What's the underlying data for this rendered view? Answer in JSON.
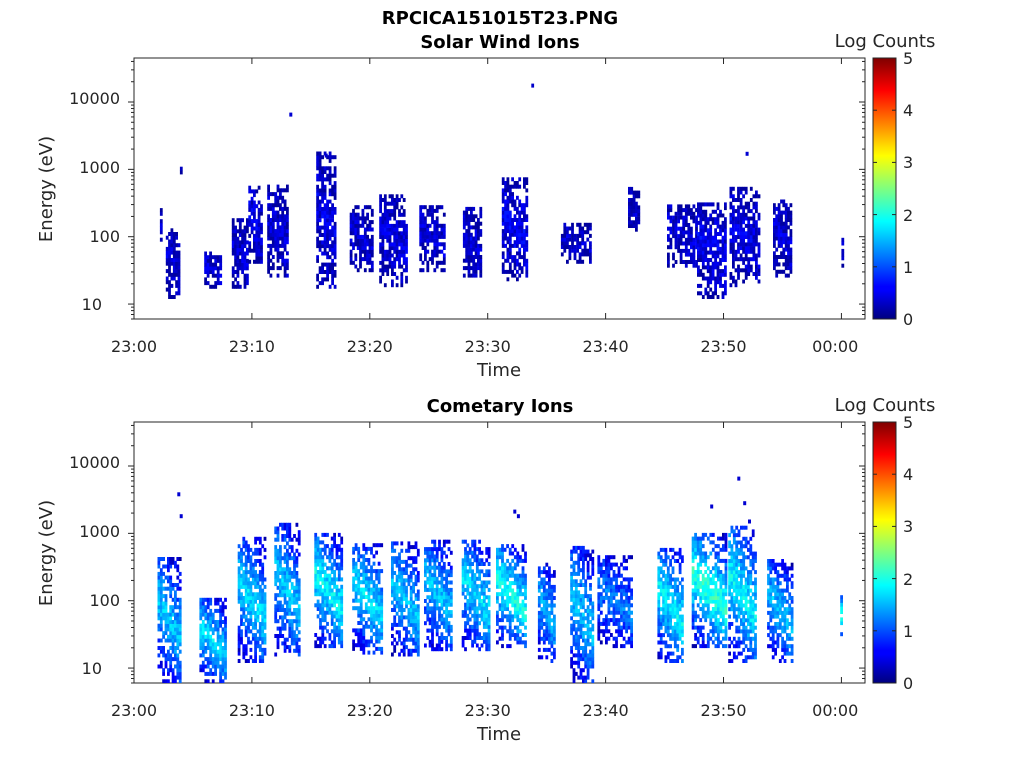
{
  "figure": {
    "title": "RPCICA151015T23.PNG"
  },
  "chart_data": [
    {
      "type": "heatmap",
      "title": "Solar Wind Ions",
      "xlabel": "Time",
      "ylabel": "Energy (eV)",
      "x_tick_labels": [
        "23:00",
        "23:10",
        "23:20",
        "23:30",
        "23:40",
        "23:50",
        "00:00"
      ],
      "x_range_minutes": [
        0,
        62
      ],
      "y_tick_labels": [
        "10",
        "100",
        "1000",
        "10000"
      ],
      "y_range_eV": [
        6,
        45000
      ],
      "y_scale": "log",
      "colorbar": {
        "label": "Log Counts",
        "range": [
          0,
          5
        ],
        "ticks": [
          "0",
          "1",
          "2",
          "3",
          "4",
          "5"
        ],
        "colormap": "jet"
      },
      "bursts": [
        {
          "t": 2.3,
          "width": 0.3,
          "e_low": 75,
          "e_high": 300,
          "count": 0.3
        },
        {
          "t": 3.3,
          "width": 1.2,
          "e_low": 12,
          "e_high": 120,
          "count": 0.35
        },
        {
          "t": 4.0,
          "width": 0.3,
          "e_low": 850,
          "e_high": 1100,
          "count": 0.3
        },
        {
          "t": 6.7,
          "width": 1.5,
          "e_low": 17,
          "e_high": 60,
          "count": 0.35
        },
        {
          "t": 9.0,
          "width": 1.4,
          "e_low": 17,
          "e_high": 180,
          "count": 0.35
        },
        {
          "t": 10.3,
          "width": 1.2,
          "e_low": 40,
          "e_high": 550,
          "count": 0.4
        },
        {
          "t": 12.2,
          "width": 1.8,
          "e_low": 25,
          "e_high": 550,
          "count": 0.35
        },
        {
          "t": 16.3,
          "width": 1.7,
          "e_low": 17,
          "e_high": 1700,
          "count": 0.4
        },
        {
          "t": 19.3,
          "width": 2.0,
          "e_low": 30,
          "e_high": 280,
          "count": 0.35
        },
        {
          "t": 22.0,
          "width": 2.4,
          "e_low": 18,
          "e_high": 420,
          "count": 0.35
        },
        {
          "t": 25.3,
          "width": 2.2,
          "e_low": 30,
          "e_high": 280,
          "count": 0.35
        },
        {
          "t": 28.7,
          "width": 1.6,
          "e_low": 25,
          "e_high": 270,
          "count": 0.35
        },
        {
          "t": 32.3,
          "width": 2.2,
          "e_low": 22,
          "e_high": 700,
          "count": 0.45
        },
        {
          "t": 33.8,
          "width": 0.25,
          "e_low": 16500,
          "e_high": 18000,
          "count": 0.3
        },
        {
          "t": 37.5,
          "width": 2.6,
          "e_low": 40,
          "e_high": 160,
          "count": 0.3
        },
        {
          "t": 42.4,
          "width": 1.0,
          "e_low": 120,
          "e_high": 500,
          "count": 0.3
        },
        {
          "t": 46.5,
          "width": 2.6,
          "e_low": 35,
          "e_high": 300,
          "count": 0.35
        },
        {
          "t": 49.0,
          "width": 2.5,
          "e_low": 12,
          "e_high": 320,
          "count": 0.45
        },
        {
          "t": 51.8,
          "width": 2.6,
          "e_low": 18,
          "e_high": 520,
          "count": 0.4
        },
        {
          "t": 55.0,
          "width": 1.6,
          "e_low": 25,
          "e_high": 350,
          "count": 0.35
        },
        {
          "t": 60.1,
          "width": 0.3,
          "e_low": 35,
          "e_high": 95,
          "count": 0.3
        }
      ],
      "points": [
        {
          "t": 13.3,
          "e": 6500
        },
        {
          "t": 16.3,
          "e": 1600
        },
        {
          "t": 52.0,
          "e": 1700
        }
      ]
    },
    {
      "type": "heatmap",
      "title": "Cometary Ions",
      "xlabel": "Time",
      "ylabel": "Energy (eV)",
      "x_tick_labels": [
        "23:00",
        "23:10",
        "23:20",
        "23:30",
        "23:40",
        "23:50",
        "00:00"
      ],
      "x_range_minutes": [
        0,
        62
      ],
      "y_tick_labels": [
        "10",
        "100",
        "1000",
        "10000"
      ],
      "y_range_eV": [
        6,
        45000
      ],
      "y_scale": "log",
      "colorbar": {
        "label": "Log Counts",
        "range": [
          0,
          5
        ],
        "ticks": [
          "0",
          "1",
          "2",
          "3",
          "4",
          "5"
        ],
        "colormap": "jet"
      },
      "bursts": [
        {
          "t": 3.0,
          "width": 2.0,
          "e_low": 6,
          "e_high": 400,
          "count": 1.3
        },
        {
          "t": 6.7,
          "width": 2.3,
          "e_low": 6,
          "e_high": 100,
          "count": 1.4
        },
        {
          "t": 10.0,
          "width": 2.4,
          "e_low": 12,
          "e_high": 800,
          "count": 1.4
        },
        {
          "t": 13.0,
          "width": 2.2,
          "e_low": 15,
          "e_high": 1400,
          "count": 1.3
        },
        {
          "t": 16.5,
          "width": 2.4,
          "e_low": 20,
          "e_high": 900,
          "count": 1.5
        },
        {
          "t": 19.8,
          "width": 2.6,
          "e_low": 16,
          "e_high": 700,
          "count": 1.4
        },
        {
          "t": 23.0,
          "width": 2.4,
          "e_low": 15,
          "e_high": 700,
          "count": 1.3
        },
        {
          "t": 25.8,
          "width": 2.4,
          "e_low": 18,
          "e_high": 800,
          "count": 1.3
        },
        {
          "t": 29.0,
          "width": 2.4,
          "e_low": 18,
          "e_high": 800,
          "count": 1.4
        },
        {
          "t": 32.0,
          "width": 2.6,
          "e_low": 20,
          "e_high": 650,
          "count": 1.6
        },
        {
          "t": 35.0,
          "width": 1.5,
          "e_low": 12,
          "e_high": 350,
          "count": 1.2
        },
        {
          "t": 38.0,
          "width": 2.0,
          "e_low": 6,
          "e_high": 600,
          "count": 1.3
        },
        {
          "t": 40.8,
          "width": 3.0,
          "e_low": 20,
          "e_high": 450,
          "count": 1.0
        },
        {
          "t": 45.5,
          "width": 2.2,
          "e_low": 12,
          "e_high": 600,
          "count": 1.5
        },
        {
          "t": 48.8,
          "width": 3.0,
          "e_low": 20,
          "e_high": 900,
          "count": 1.7
        },
        {
          "t": 51.6,
          "width": 2.4,
          "e_low": 12,
          "e_high": 1200,
          "count": 1.5
        },
        {
          "t": 54.8,
          "width": 2.2,
          "e_low": 12,
          "e_high": 380,
          "count": 1.3
        },
        {
          "t": 60.0,
          "width": 0.3,
          "e_low": 30,
          "e_high": 120,
          "count": 1.8
        }
      ],
      "points": [
        {
          "t": 3.8,
          "e": 3800
        },
        {
          "t": 4.0,
          "e": 1800
        },
        {
          "t": 32.3,
          "e": 2100
        },
        {
          "t": 32.6,
          "e": 1800
        },
        {
          "t": 49.0,
          "e": 2500
        },
        {
          "t": 51.3,
          "e": 6500
        },
        {
          "t": 51.8,
          "e": 2800
        },
        {
          "t": 52.2,
          "e": 1500
        }
      ]
    }
  ]
}
